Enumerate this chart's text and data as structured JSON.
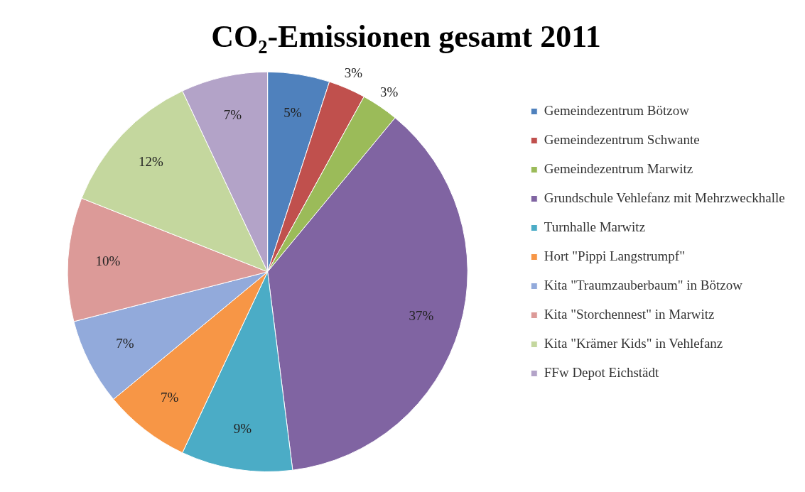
{
  "chart_data": {
    "type": "pie",
    "title": "CO₂-Emissionen gesamt 2011",
    "categories": [
      "Gemeindezentrum Bötzow",
      "Gemeindezentrum Schwante",
      "Gemeindezentrum Marwitz",
      "Grundschule Vehlefanz mit Mehrzweckhalle",
      "Turnhalle Marwitz",
      "Hort \"Pippi Langstrumpf\"",
      "Kita \"Traumzauberbaum\" in Bötzow",
      "Kita \"Storchennest\" in Marwitz",
      "Kita \"Krämer Kids\" in Vehlefanz",
      "FFw Depot Eichstädt"
    ],
    "values": [
      5,
      3,
      3,
      37,
      9,
      7,
      7,
      10,
      12,
      7
    ],
    "value_labels": [
      "5%",
      "3%",
      "3%",
      "37%",
      "9%",
      "7%",
      "7%",
      "10%",
      "12%",
      "7%"
    ],
    "colors": [
      "#4f81bd",
      "#c0504d",
      "#9bbb59",
      "#8064a2",
      "#4bacc6",
      "#f79646",
      "#92aadb",
      "#dc9a98",
      "#c4d79e",
      "#b3a3c8"
    ],
    "legend": "right"
  }
}
